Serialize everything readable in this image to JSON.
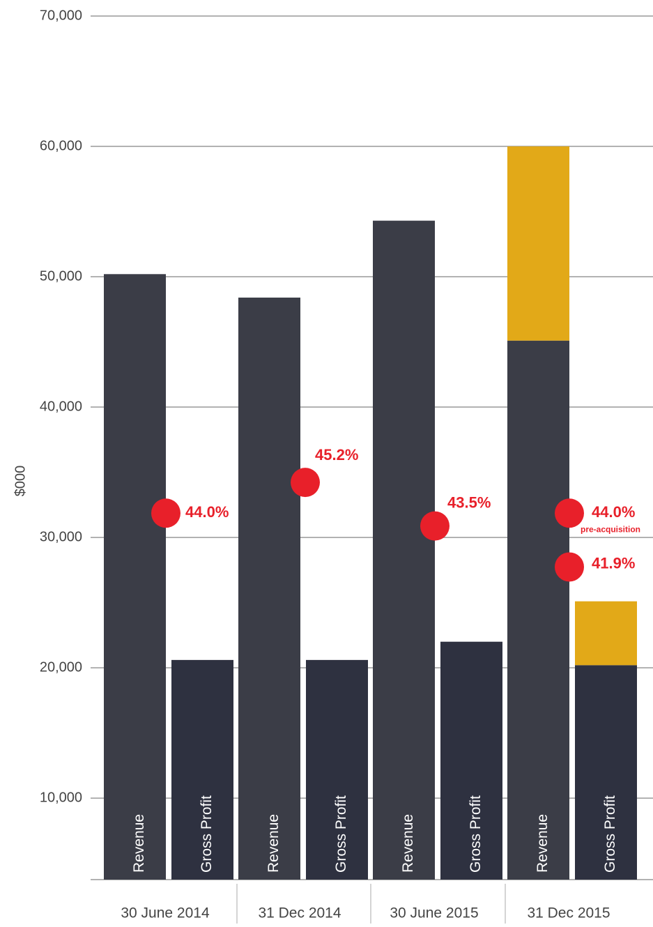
{
  "chart_data": {
    "type": "bar",
    "y_label": "$000",
    "categories": [
      "30 June 2014",
      "31 Dec 2014",
      "30 June 2015",
      "31 Dec 2015"
    ],
    "series": [
      {
        "name": "Revenue",
        "color": "#3b3d47",
        "values": [
          50200,
          48400,
          54300,
          45100
        ],
        "acquisition_values": [
          null,
          null,
          null,
          14900
        ]
      },
      {
        "name": "Gross Profit",
        "color": "#2e3140",
        "values": [
          20600,
          20600,
          22000,
          20200
        ],
        "acquisition_values": [
          null,
          null,
          null,
          4900
        ]
      }
    ],
    "acquisition_color": "#e2a918",
    "ylim": [
      3750,
      70000
    ],
    "yticks": [
      {
        "value": 10000,
        "label": "10,000"
      },
      {
        "value": 20000,
        "label": "20,000"
      },
      {
        "value": 30000,
        "label": "30,000"
      },
      {
        "value": 40000,
        "label": "40,000"
      },
      {
        "value": 50000,
        "label": "50,000"
      },
      {
        "value": 60000,
        "label": "60,000"
      },
      {
        "value": 70000,
        "label": "70,000"
      }
    ],
    "grid": true,
    "margins": {
      "axis": "y2",
      "color": "#e8202a",
      "x": [
        "30 June 2014",
        "31 Dec 2014",
        "30 June 2015",
        "31 Dec 2015",
        "31 Dec 2015"
      ],
      "values": [
        44.0,
        45.2,
        43.5,
        44.0,
        41.9
      ],
      "value_labels": [
        "44.0%",
        "45.2%",
        "43.5%",
        "44.0%",
        "41.9%"
      ],
      "note": "pre-acquisition"
    },
    "y2lim": [
      29.7,
      63.4
    ]
  }
}
